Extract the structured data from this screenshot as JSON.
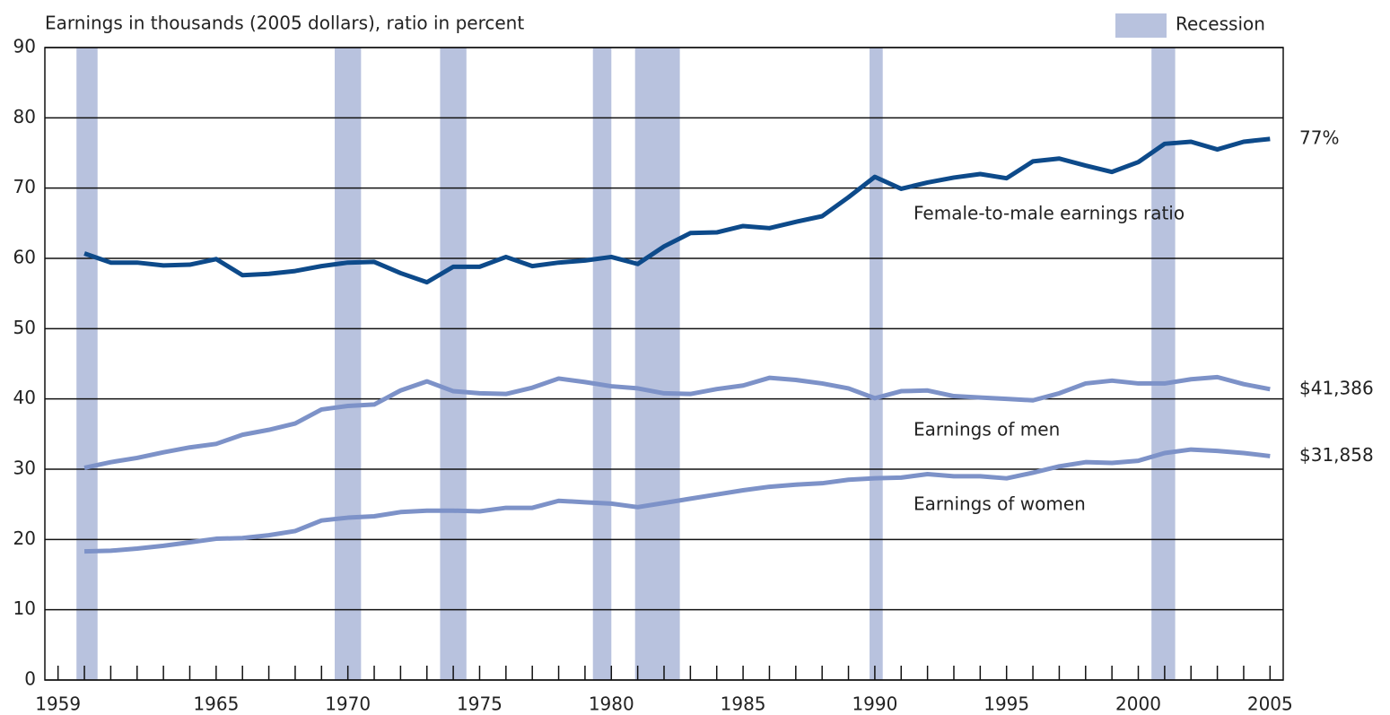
{
  "chart_data": {
    "type": "line",
    "title": "Earnings in thousands (2005 dollars), ratio in percent",
    "recession_label": "Recession",
    "recession_color": "#b8c2de",
    "recessions": [
      [
        1959.7,
        1960.5
      ],
      [
        1969.5,
        1970.5
      ],
      [
        1973.5,
        1974.5
      ],
      [
        1979.3,
        1980.0
      ],
      [
        1980.9,
        1982.6
      ],
      [
        1989.8,
        1990.3
      ],
      [
        2000.5,
        2001.4
      ]
    ],
    "x": [
      1960,
      1961,
      1962,
      1963,
      1964,
      1965,
      1966,
      1967,
      1968,
      1969,
      1970,
      1971,
      1972,
      1973,
      1974,
      1975,
      1976,
      1977,
      1978,
      1979,
      1980,
      1981,
      1982,
      1983,
      1984,
      1985,
      1986,
      1987,
      1988,
      1989,
      1990,
      1991,
      1992,
      1993,
      1994,
      1995,
      1996,
      1997,
      1998,
      1999,
      2000,
      2001,
      2002,
      2003,
      2004,
      2005
    ],
    "series": [
      {
        "name": "Female-to-male earnings ratio",
        "color": "#0d4a8a",
        "end_label": "77%",
        "values": [
          60.7,
          59.4,
          59.4,
          59.0,
          59.1,
          59.9,
          57.6,
          57.8,
          58.2,
          58.9,
          59.4,
          59.5,
          57.9,
          56.6,
          58.8,
          58.8,
          60.2,
          58.9,
          59.4,
          59.7,
          60.2,
          59.2,
          61.7,
          63.6,
          63.7,
          64.6,
          64.3,
          65.2,
          66.0,
          68.7,
          71.6,
          69.9,
          70.8,
          71.5,
          72.0,
          71.4,
          73.8,
          74.2,
          73.2,
          72.3,
          73.7,
          76.3,
          76.6,
          75.5,
          76.6,
          77
        ]
      },
      {
        "name": "Earnings of men",
        "color": "#7d92c8",
        "end_label": "$41,386",
        "values": [
          30.2,
          31.0,
          31.6,
          32.4,
          33.1,
          33.6,
          34.9,
          35.6,
          36.5,
          38.5,
          39.0,
          39.2,
          41.2,
          42.5,
          41.1,
          40.8,
          40.7,
          41.6,
          42.9,
          42.4,
          41.8,
          41.5,
          40.8,
          40.7,
          41.4,
          41.9,
          43.0,
          42.7,
          42.2,
          41.5,
          40.1,
          41.1,
          41.2,
          40.4,
          40.2,
          40.0,
          39.8,
          40.8,
          42.2,
          42.6,
          42.2,
          42.2,
          42.8,
          43.1,
          42.1,
          41.386
        ]
      },
      {
        "name": "Earnings of women",
        "color": "#7d92c8",
        "end_label": "$31,858",
        "values": [
          18.3,
          18.4,
          18.7,
          19.1,
          19.6,
          20.1,
          20.2,
          20.6,
          21.2,
          22.7,
          23.1,
          23.3,
          23.9,
          24.1,
          24.1,
          24.0,
          24.5,
          24.5,
          25.5,
          25.3,
          25.1,
          24.6,
          25.2,
          25.8,
          26.4,
          27.0,
          27.5,
          27.8,
          28.0,
          28.5,
          28.7,
          28.8,
          29.3,
          29.0,
          29.0,
          28.7,
          29.5,
          30.4,
          31.0,
          30.9,
          31.2,
          32.3,
          32.8,
          32.6,
          32.3,
          31.858
        ]
      }
    ],
    "xlim": [
      1958.5,
      2005.5
    ],
    "xticks": [
      1959,
      1965,
      1970,
      1975,
      1980,
      1985,
      1990,
      1995,
      2000,
      2005
    ],
    "x_minor_ticks": [
      1959,
      1960,
      1961,
      1962,
      1963,
      1964,
      1965,
      1966,
      1967,
      1968,
      1969,
      1970,
      1971,
      1972,
      1973,
      1974,
      1975,
      1976,
      1977,
      1978,
      1979,
      1980,
      1981,
      1982,
      1983,
      1984,
      1985,
      1986,
      1987,
      1988,
      1989,
      1990,
      1991,
      1992,
      1993,
      1994,
      1995,
      1996,
      1997,
      1998,
      1999,
      2000,
      2001,
      2002,
      2003,
      2004,
      2005
    ],
    "ylim": [
      0,
      90
    ],
    "yticks": [
      0,
      10,
      20,
      30,
      40,
      50,
      60,
      70,
      80,
      90
    ],
    "grid": true
  }
}
